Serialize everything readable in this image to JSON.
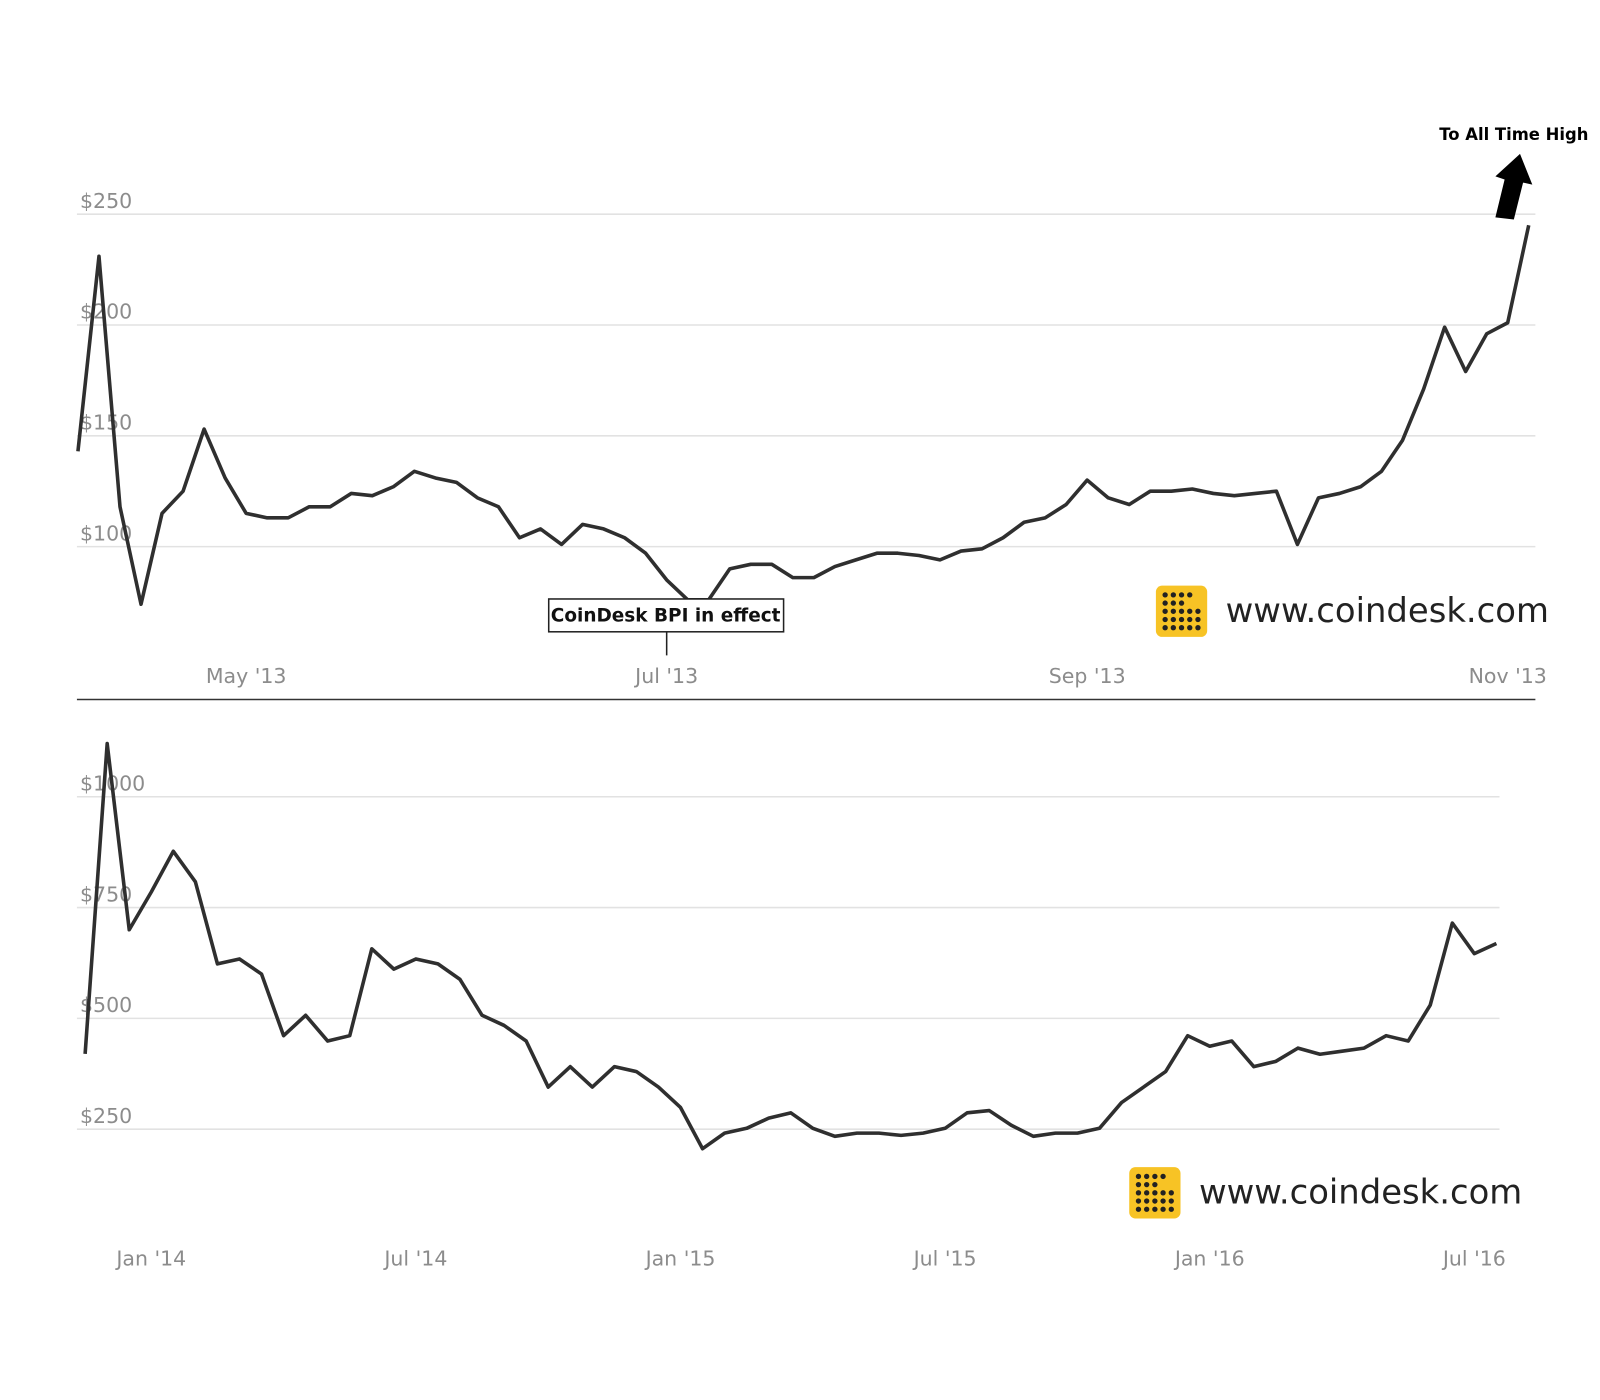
{
  "chart_data": [
    {
      "type": "line",
      "categories": [
        null,
        null,
        null,
        null,
        null,
        null,
        null,
        null,
        "May '13",
        null,
        null,
        null,
        null,
        null,
        null,
        null,
        null,
        null,
        null,
        null,
        null,
        null,
        null,
        null,
        null,
        null,
        null,
        null,
        "Jul '13",
        null,
        null,
        null,
        null,
        null,
        null,
        null,
        null,
        null,
        null,
        null,
        null,
        null,
        null,
        null,
        null,
        null,
        null,
        null,
        "Sep '13",
        null,
        null,
        null,
        null,
        null,
        null,
        null,
        null,
        null,
        null,
        null,
        null,
        null,
        null,
        null,
        null,
        null,
        null,
        null,
        "Nov '13",
        null
      ],
      "values": [
        143,
        231,
        118,
        74,
        115,
        125,
        153,
        131,
        115,
        113,
        113,
        118,
        118,
        124,
        123,
        127,
        134,
        131,
        129,
        122,
        118,
        104,
        108,
        101,
        110,
        108,
        104,
        97,
        85,
        76,
        76,
        90,
        92,
        92,
        86,
        86,
        91,
        94,
        97,
        97,
        96,
        94,
        98,
        99,
        104,
        111,
        113,
        119,
        130,
        122,
        119,
        125,
        125,
        126,
        124,
        123,
        124,
        125,
        101,
        122,
        124,
        127,
        134,
        148,
        171,
        199,
        179,
        196,
        201,
        245
      ],
      "color": "#2f2f2f",
      "ylim": [
        50,
        280
      ],
      "yticks": [
        {
          "value": 100,
          "label": "$100"
        },
        {
          "value": 150,
          "label": "$150"
        },
        {
          "value": 200,
          "label": "$200"
        },
        {
          "value": 250,
          "label": "$250"
        }
      ],
      "grid": true,
      "annotations": [
        "CoinDesk BPI in effect",
        "To All Time High"
      ],
      "watermark": "www.coindesk.com"
    },
    {
      "type": "line",
      "categories": [
        null,
        null,
        null,
        "Jan '14",
        null,
        null,
        null,
        null,
        null,
        null,
        null,
        null,
        null,
        null,
        null,
        "Jul '14",
        null,
        null,
        null,
        null,
        null,
        null,
        null,
        null,
        null,
        null,
        null,
        "Jan '15",
        null,
        null,
        null,
        null,
        null,
        null,
        null,
        null,
        null,
        null,
        null,
        "Jul '15",
        null,
        null,
        null,
        null,
        null,
        null,
        null,
        null,
        null,
        null,
        null,
        "Jan '16",
        null,
        null,
        null,
        null,
        null,
        null,
        null,
        null,
        null,
        null,
        null,
        "Jul '16",
        null
      ],
      "values": [
        420,
        1120,
        700,
        785,
        877,
        808,
        623,
        634,
        600,
        461,
        507,
        449,
        461,
        657,
        611,
        634,
        623,
        588,
        507,
        484,
        449,
        345,
        391,
        345,
        391,
        380,
        345,
        299,
        206,
        241,
        252,
        275,
        287,
        252,
        234,
        241,
        241,
        236,
        241,
        252,
        287,
        292,
        259,
        234,
        241,
        241,
        252,
        310,
        345,
        380,
        461,
        437,
        449,
        391,
        403,
        433,
        419,
        426,
        433,
        461,
        449,
        530,
        715,
        646,
        669
      ],
      "color": "#2f2f2f",
      "ylim": [
        0,
        1150
      ],
      "yticks": [
        {
          "value": 250,
          "label": "$250"
        },
        {
          "value": 500,
          "label": "$500"
        },
        {
          "value": 750,
          "label": "$750"
        },
        {
          "value": 1000,
          "label": "$1000"
        }
      ],
      "grid": true,
      "watermark": "www.coindesk.com"
    }
  ]
}
